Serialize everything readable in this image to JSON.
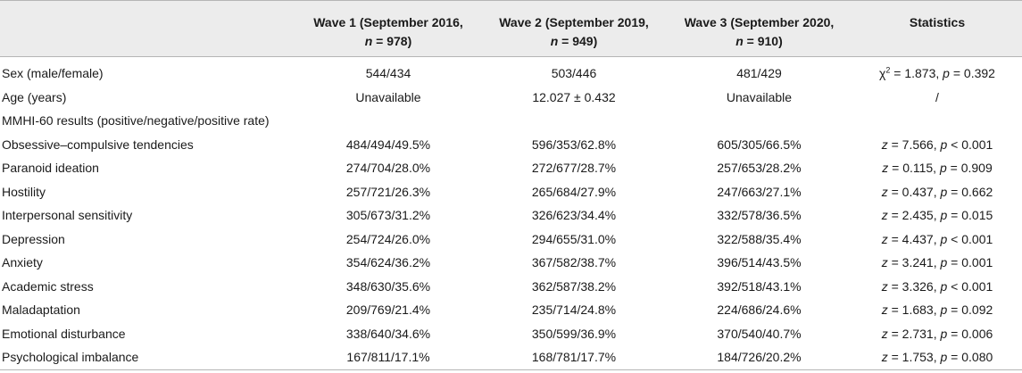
{
  "header": {
    "col0": "",
    "wave1_line1": "Wave 1 (September 2016,",
    "wave1_n": "= 978)",
    "wave2_line1": "Wave 2 (September 2019,",
    "wave2_n": "= 949)",
    "wave3_line1": "Wave 3 (September 2020,",
    "wave3_n": "= 910)",
    "n_symbol": "n",
    "statistics": "Statistics"
  },
  "rows": [
    {
      "label": "Sex (male/female)",
      "w1": "544/434",
      "w2": "503/446",
      "w3": "481/429",
      "stat_sym": "χ",
      "stat_sup": "2",
      "stat_rest": " = 1.873, ",
      "p_sym": "p",
      "p_rest": " = 0.392"
    },
    {
      "label": "Age (years)",
      "w1": "Unavailable",
      "w2": "12.027 ± 0.432",
      "w3": "Unavailable",
      "stat_plain": "/"
    },
    {
      "label": "MMHI-60 results (positive/negative/positive rate)",
      "w1": "",
      "w2": "",
      "w3": ""
    },
    {
      "label": "Obsessive–compulsive tendencies",
      "w1": "484/494/49.5%",
      "w2": "596/353/62.8%",
      "w3": "605/305/66.5%",
      "z_sym": "z",
      "z_rest": " = 7.566, ",
      "p_sym": "p",
      "p_rest": " < 0.001"
    },
    {
      "label": "Paranoid ideation",
      "w1": "274/704/28.0%",
      "w2": "272/677/28.7%",
      "w3": "257/653/28.2%",
      "z_sym": "z",
      "z_rest": " = 0.115, ",
      "p_sym": "p",
      "p_rest": " = 0.909"
    },
    {
      "label": "Hostility",
      "w1": "257/721/26.3%",
      "w2": "265/684/27.9%",
      "w3": "247/663/27.1%",
      "z_sym": "z",
      "z_rest": " = 0.437, ",
      "p_sym": "p",
      "p_rest": " = 0.662"
    },
    {
      "label": "Interpersonal sensitivity",
      "w1": "305/673/31.2%",
      "w2": "326/623/34.4%",
      "w3": "332/578/36.5%",
      "z_sym": "z",
      "z_rest": " = 2.435, ",
      "p_sym": "p",
      "p_rest": " = 0.015"
    },
    {
      "label": "Depression",
      "w1": "254/724/26.0%",
      "w2": "294/655/31.0%",
      "w3": "322/588/35.4%",
      "z_sym": "z",
      "z_rest": " = 4.437, ",
      "p_sym": "p",
      "p_rest": " < 0.001"
    },
    {
      "label": "Anxiety",
      "w1": "354/624/36.2%",
      "w2": "367/582/38.7%",
      "w3": "396/514/43.5%",
      "z_sym": "z",
      "z_rest": " = 3.241, ",
      "p_sym": "p",
      "p_rest": " = 0.001"
    },
    {
      "label": "Academic stress",
      "w1": "348/630/35.6%",
      "w2": "362/587/38.2%",
      "w3": "392/518/43.1%",
      "z_sym": "z",
      "z_rest": " = 3.326, ",
      "p_sym": "p",
      "p_rest": " < 0.001"
    },
    {
      "label": "Maladaptation",
      "w1": "209/769/21.4%",
      "w2": "235/714/24.8%",
      "w3": "224/686/24.6%",
      "z_sym": "z",
      "z_rest": " = 1.683, ",
      "p_sym": "p",
      "p_rest": " = 0.092"
    },
    {
      "label": "Emotional disturbance",
      "w1": "338/640/34.6%",
      "w2": "350/599/36.9%",
      "w3": "370/540/40.7%",
      "z_sym": "z",
      "z_rest": " = 2.731, ",
      "p_sym": "p",
      "p_rest": " = 0.006"
    },
    {
      "label": "Psychological imbalance",
      "w1": "167/811/17.1%",
      "w2": "168/781/17.7%",
      "w3": "184/726/20.2%",
      "z_sym": "z",
      "z_rest": " = 1.753, ",
      "p_sym": "p",
      "p_rest": " = 0.080"
    }
  ]
}
